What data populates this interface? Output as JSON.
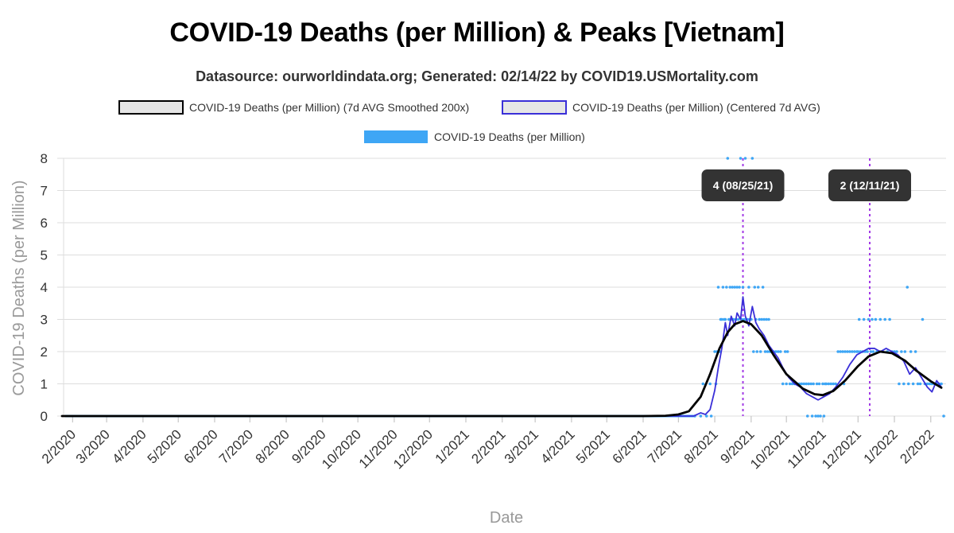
{
  "title": "COVID-19 Deaths (per Million) & Peaks [Vietnam]",
  "subtitle": "Datasource: ourworldindata.org; Generated: 02/14/22 by COVID19.USMortality.com",
  "colors": {
    "smoothed": "#000000",
    "centered": "#3a2fd8",
    "daily": "#3ea6f5",
    "peak_line": "#a239e6",
    "peak_label_bg": "#333333",
    "grid": "#dddddd"
  },
  "chart_data": {
    "type": "line",
    "xlabel": "Date",
    "ylabel": "COVID-19 Deaths (per Million)",
    "ylim": [
      0,
      8
    ],
    "yticks": [
      "0",
      "1",
      "2",
      "3",
      "4",
      "5",
      "6",
      "7",
      "8"
    ],
    "xlim": [
      "2020-01-23",
      "2022-02-14"
    ],
    "xticks": [
      {
        "label": "2/2020",
        "date": "2020-02-01"
      },
      {
        "label": "3/2020",
        "date": "2020-03-01"
      },
      {
        "label": "4/2020",
        "date": "2020-04-01"
      },
      {
        "label": "5/2020",
        "date": "2020-05-01"
      },
      {
        "label": "6/2020",
        "date": "2020-06-01"
      },
      {
        "label": "7/2020",
        "date": "2020-07-01"
      },
      {
        "label": "8/2020",
        "date": "2020-08-01"
      },
      {
        "label": "9/2020",
        "date": "2020-09-01"
      },
      {
        "label": "10/2020",
        "date": "2020-10-01"
      },
      {
        "label": "11/2020",
        "date": "2020-11-01"
      },
      {
        "label": "12/2020",
        "date": "2020-12-01"
      },
      {
        "label": "1/2021",
        "date": "2021-01-01"
      },
      {
        "label": "2/2021",
        "date": "2021-02-01"
      },
      {
        "label": "3/2021",
        "date": "2021-03-01"
      },
      {
        "label": "4/2021",
        "date": "2021-04-01"
      },
      {
        "label": "5/2021",
        "date": "2021-05-01"
      },
      {
        "label": "6/2021",
        "date": "2021-06-01"
      },
      {
        "label": "7/2021",
        "date": "2021-07-01"
      },
      {
        "label": "8/2021",
        "date": "2021-08-01"
      },
      {
        "label": "9/2021",
        "date": "2021-09-01"
      },
      {
        "label": "10/2021",
        "date": "2021-10-01"
      },
      {
        "label": "11/2021",
        "date": "2021-11-01"
      },
      {
        "label": "12/2021",
        "date": "2021-12-01"
      },
      {
        "label": "1/2022",
        "date": "2022-01-01"
      },
      {
        "label": "2/2022",
        "date": "2022-02-01"
      }
    ],
    "legend": [
      {
        "label": "COVID-19 Deaths (per Million) (7d AVG Smoothed 200x)",
        "swatch": "outlined",
        "color": "#000000"
      },
      {
        "label": "COVID-19 Deaths (per Million) (Centered 7d AVG)",
        "swatch": "outlined",
        "color": "#3a2fd8"
      },
      {
        "label": "COVID-19 Deaths (per Million)",
        "swatch": "filled",
        "color": "#3ea6f5"
      }
    ],
    "series": [
      {
        "name": "COVID-19 Deaths (per Million) (7d AVG Smoothed 200x)",
        "style": "line",
        "points": [
          [
            "2020-01-23",
            0
          ],
          [
            "2021-06-01",
            0
          ],
          [
            "2021-06-20",
            0.01
          ],
          [
            "2021-07-01",
            0.05
          ],
          [
            "2021-07-10",
            0.15
          ],
          [
            "2021-07-20",
            0.6
          ],
          [
            "2021-07-28",
            1.3
          ],
          [
            "2021-08-05",
            2.1
          ],
          [
            "2021-08-12",
            2.6
          ],
          [
            "2021-08-18",
            2.85
          ],
          [
            "2021-08-25",
            2.95
          ],
          [
            "2021-09-01",
            2.85
          ],
          [
            "2021-09-10",
            2.5
          ],
          [
            "2021-09-20",
            1.9
          ],
          [
            "2021-10-01",
            1.3
          ],
          [
            "2021-10-15",
            0.85
          ],
          [
            "2021-10-25",
            0.68
          ],
          [
            "2021-11-01",
            0.65
          ],
          [
            "2021-11-10",
            0.78
          ],
          [
            "2021-11-20",
            1.1
          ],
          [
            "2021-12-01",
            1.55
          ],
          [
            "2021-12-10",
            1.85
          ],
          [
            "2021-12-20",
            2.0
          ],
          [
            "2021-12-30",
            1.95
          ],
          [
            "2022-01-10",
            1.72
          ],
          [
            "2022-01-20",
            1.4
          ],
          [
            "2022-02-01",
            1.08
          ],
          [
            "2022-02-10",
            0.88
          ]
        ]
      },
      {
        "name": "COVID-19 Deaths (per Million) (Centered 7d AVG)",
        "style": "line",
        "points": [
          [
            "2020-01-23",
            0
          ],
          [
            "2021-07-14",
            0
          ],
          [
            "2021-07-20",
            0.1
          ],
          [
            "2021-07-24",
            0.05
          ],
          [
            "2021-07-28",
            0.2
          ],
          [
            "2021-08-01",
            0.8
          ],
          [
            "2021-08-04",
            1.5
          ],
          [
            "2021-08-07",
            2.1
          ],
          [
            "2021-08-10",
            2.9
          ],
          [
            "2021-08-12",
            2.5
          ],
          [
            "2021-08-15",
            3.1
          ],
          [
            "2021-08-18",
            2.8
          ],
          [
            "2021-08-20",
            3.2
          ],
          [
            "2021-08-23",
            3.0
          ],
          [
            "2021-08-25",
            3.7
          ],
          [
            "2021-08-27",
            3.1
          ],
          [
            "2021-08-30",
            2.8
          ],
          [
            "2021-09-02",
            3.4
          ],
          [
            "2021-09-05",
            2.9
          ],
          [
            "2021-09-08",
            2.7
          ],
          [
            "2021-09-12",
            2.5
          ],
          [
            "2021-09-16",
            2.2
          ],
          [
            "2021-09-20",
            2.0
          ],
          [
            "2021-09-24",
            1.8
          ],
          [
            "2021-09-28",
            1.5
          ],
          [
            "2021-10-03",
            1.2
          ],
          [
            "2021-10-08",
            1.0
          ],
          [
            "2021-10-13",
            0.9
          ],
          [
            "2021-10-18",
            0.7
          ],
          [
            "2021-10-23",
            0.6
          ],
          [
            "2021-10-28",
            0.5
          ],
          [
            "2021-11-02",
            0.6
          ],
          [
            "2021-11-07",
            0.7
          ],
          [
            "2021-11-12",
            0.9
          ],
          [
            "2021-11-18",
            1.2
          ],
          [
            "2021-11-24",
            1.6
          ],
          [
            "2021-11-30",
            1.9
          ],
          [
            "2021-12-05",
            2.0
          ],
          [
            "2021-12-10",
            2.1
          ],
          [
            "2021-12-15",
            2.1
          ],
          [
            "2021-12-20",
            2.0
          ],
          [
            "2021-12-25",
            2.1
          ],
          [
            "2021-12-30",
            2.0
          ],
          [
            "2022-01-04",
            1.9
          ],
          [
            "2022-01-09",
            1.7
          ],
          [
            "2022-01-14",
            1.3
          ],
          [
            "2022-01-19",
            1.5
          ],
          [
            "2022-01-24",
            1.2
          ],
          [
            "2022-01-29",
            0.9
          ],
          [
            "2022-02-02",
            0.75
          ],
          [
            "2022-02-06",
            1.1
          ],
          [
            "2022-02-10",
            0.9
          ]
        ]
      },
      {
        "name": "COVID-19 Deaths (per Million)",
        "style": "points",
        "points": [
          [
            "2021-07-15",
            0
          ],
          [
            "2021-07-20",
            0
          ],
          [
            "2021-07-22",
            1
          ],
          [
            "2021-07-25",
            0
          ],
          [
            "2021-07-28",
            1
          ],
          [
            "2021-07-29",
            0
          ],
          [
            "2021-08-01",
            2
          ],
          [
            "2021-08-02",
            1
          ],
          [
            "2021-08-03",
            2
          ],
          [
            "2021-08-04",
            4
          ],
          [
            "2021-08-05",
            2
          ],
          [
            "2021-08-06",
            3
          ],
          [
            "2021-08-07",
            3
          ],
          [
            "2021-08-08",
            4
          ],
          [
            "2021-08-09",
            3
          ],
          [
            "2021-08-10",
            3
          ],
          [
            "2021-08-11",
            4
          ],
          [
            "2021-08-12",
            8
          ],
          [
            "2021-08-13",
            3
          ],
          [
            "2021-08-14",
            4
          ],
          [
            "2021-08-15",
            3
          ],
          [
            "2021-08-16",
            4
          ],
          [
            "2021-08-17",
            3
          ],
          [
            "2021-08-18",
            4
          ],
          [
            "2021-08-19",
            3
          ],
          [
            "2021-08-20",
            4
          ],
          [
            "2021-08-21",
            3
          ],
          [
            "2021-08-22",
            4
          ],
          [
            "2021-08-23",
            8
          ],
          [
            "2021-08-24",
            3
          ],
          [
            "2021-08-25",
            4
          ],
          [
            "2021-08-26",
            3
          ],
          [
            "2021-08-27",
            8
          ],
          [
            "2021-08-28",
            3
          ],
          [
            "2021-08-29",
            3
          ],
          [
            "2021-08-30",
            4
          ],
          [
            "2021-08-31",
            3
          ],
          [
            "2021-09-02",
            8
          ],
          [
            "2021-09-01",
            3
          ],
          [
            "2021-09-03",
            2
          ],
          [
            "2021-09-04",
            4
          ],
          [
            "2021-09-05",
            3
          ],
          [
            "2021-09-06",
            2
          ],
          [
            "2021-09-07",
            4
          ],
          [
            "2021-09-08",
            3
          ],
          [
            "2021-09-09",
            2
          ],
          [
            "2021-09-10",
            3
          ],
          [
            "2021-09-11",
            4
          ],
          [
            "2021-09-12",
            3
          ],
          [
            "2021-09-13",
            2
          ],
          [
            "2021-09-14",
            3
          ],
          [
            "2021-09-15",
            2
          ],
          [
            "2021-09-16",
            3
          ],
          [
            "2021-09-17",
            2
          ],
          [
            "2021-09-18",
            2
          ],
          [
            "2021-09-20",
            2
          ],
          [
            "2021-09-22",
            2
          ],
          [
            "2021-09-24",
            2
          ],
          [
            "2021-09-26",
            2
          ],
          [
            "2021-09-28",
            1
          ],
          [
            "2021-09-30",
            2
          ],
          [
            "2021-10-01",
            1
          ],
          [
            "2021-10-02",
            2
          ],
          [
            "2021-10-04",
            1
          ],
          [
            "2021-10-06",
            1
          ],
          [
            "2021-10-08",
            1
          ],
          [
            "2021-10-10",
            1
          ],
          [
            "2021-10-12",
            1
          ],
          [
            "2021-10-14",
            1
          ],
          [
            "2021-10-16",
            1
          ],
          [
            "2021-10-18",
            1
          ],
          [
            "2021-10-19",
            0
          ],
          [
            "2021-10-20",
            1
          ],
          [
            "2021-10-22",
            1
          ],
          [
            "2021-10-23",
            0
          ],
          [
            "2021-10-24",
            1
          ],
          [
            "2021-10-26",
            0
          ],
          [
            "2021-10-27",
            1
          ],
          [
            "2021-10-28",
            0
          ],
          [
            "2021-10-29",
            1
          ],
          [
            "2021-10-30",
            0
          ],
          [
            "2021-11-01",
            1
          ],
          [
            "2021-11-02",
            0
          ],
          [
            "2021-11-03",
            1
          ],
          [
            "2021-11-04",
            1
          ],
          [
            "2021-11-06",
            1
          ],
          [
            "2021-11-08",
            1
          ],
          [
            "2021-11-10",
            1
          ],
          [
            "2021-11-12",
            1
          ],
          [
            "2021-11-14",
            2
          ],
          [
            "2021-11-16",
            2
          ],
          [
            "2021-11-18",
            2
          ],
          [
            "2021-11-19",
            1
          ],
          [
            "2021-11-20",
            2
          ],
          [
            "2021-11-22",
            2
          ],
          [
            "2021-11-24",
            2
          ],
          [
            "2021-11-26",
            2
          ],
          [
            "2021-11-28",
            2
          ],
          [
            "2021-11-30",
            2
          ],
          [
            "2021-12-01",
            2
          ],
          [
            "2021-12-02",
            3
          ],
          [
            "2021-12-03",
            2
          ],
          [
            "2021-12-05",
            2
          ],
          [
            "2021-12-06",
            3
          ],
          [
            "2021-12-07",
            2
          ],
          [
            "2021-12-09",
            2
          ],
          [
            "2021-12-10",
            3
          ],
          [
            "2021-12-12",
            2
          ],
          [
            "2021-12-13",
            3
          ],
          [
            "2021-12-14",
            2
          ],
          [
            "2021-12-16",
            3
          ],
          [
            "2021-12-17",
            2
          ],
          [
            "2021-12-19",
            2
          ],
          [
            "2021-12-20",
            3
          ],
          [
            "2021-12-22",
            2
          ],
          [
            "2021-12-24",
            3
          ],
          [
            "2021-12-26",
            2
          ],
          [
            "2021-12-28",
            3
          ],
          [
            "2021-12-30",
            2
          ],
          [
            "2022-01-01",
            2
          ],
          [
            "2022-01-03",
            2
          ],
          [
            "2022-01-05",
            1
          ],
          [
            "2022-01-07",
            2
          ],
          [
            "2022-01-09",
            1
          ],
          [
            "2022-01-10",
            2
          ],
          [
            "2022-01-12",
            4
          ],
          [
            "2022-01-13",
            1
          ],
          [
            "2022-01-15",
            2
          ],
          [
            "2022-01-17",
            1
          ],
          [
            "2022-01-19",
            2
          ],
          [
            "2022-01-21",
            1
          ],
          [
            "2022-01-23",
            1
          ],
          [
            "2022-01-25",
            3
          ],
          [
            "2022-01-27",
            1
          ],
          [
            "2022-01-29",
            1
          ],
          [
            "2022-01-31",
            1
          ],
          [
            "2022-02-02",
            1
          ],
          [
            "2022-02-04",
            1
          ],
          [
            "2022-02-06",
            1
          ],
          [
            "2022-02-08",
            1
          ],
          [
            "2022-02-10",
            1
          ],
          [
            "2022-02-12",
            0
          ]
        ]
      }
    ],
    "peaks": [
      {
        "date": "2021-08-25",
        "label": "4 (08/25/21)"
      },
      {
        "date": "2021-12-11",
        "label": "2 (12/11/21)"
      }
    ]
  }
}
